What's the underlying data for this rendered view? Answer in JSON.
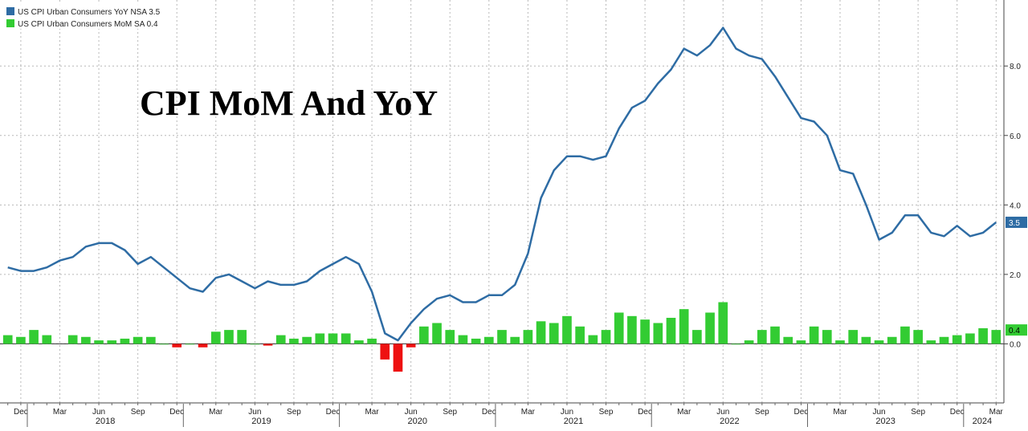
{
  "chart_data": {
    "type": "bar+line",
    "title": "CPI MoM And YoY",
    "legend": [
      {
        "label": "US CPI Urban Consumers YoY NSA",
        "value": "3.5",
        "color": "#2e6ca4"
      },
      {
        "label": "US CPI Urban Consumers MoM SA",
        "value": "0.4",
        "color": "#33cc33"
      }
    ],
    "legend_position": "top-left",
    "y_axis": {
      "position": "right",
      "range": [
        -1.7,
        9.9
      ],
      "ticks": [
        {
          "value": 0,
          "label": "0.0"
        },
        {
          "value": 2,
          "label": "2.0"
        },
        {
          "value": 4,
          "label": "4.0"
        },
        {
          "value": 6,
          "label": "6.0"
        },
        {
          "value": 8,
          "label": "8.0"
        }
      ]
    },
    "grid": true,
    "x_months": [
      "2017-11",
      "2017-12",
      "2018-01",
      "2018-02",
      "2018-03",
      "2018-04",
      "2018-05",
      "2018-06",
      "2018-07",
      "2018-08",
      "2018-09",
      "2018-10",
      "2018-11",
      "2018-12",
      "2019-01",
      "2019-02",
      "2019-03",
      "2019-04",
      "2019-05",
      "2019-06",
      "2019-07",
      "2019-08",
      "2019-09",
      "2019-10",
      "2019-11",
      "2019-12",
      "2020-01",
      "2020-02",
      "2020-03",
      "2020-04",
      "2020-05",
      "2020-06",
      "2020-07",
      "2020-08",
      "2020-09",
      "2020-10",
      "2020-11",
      "2020-12",
      "2021-01",
      "2021-02",
      "2021-03",
      "2021-04",
      "2021-05",
      "2021-06",
      "2021-07",
      "2021-08",
      "2021-09",
      "2021-10",
      "2021-11",
      "2021-12",
      "2022-01",
      "2022-02",
      "2022-03",
      "2022-04",
      "2022-05",
      "2022-06",
      "2022-07",
      "2022-08",
      "2022-09",
      "2022-10",
      "2022-11",
      "2022-12",
      "2023-01",
      "2023-02",
      "2023-03",
      "2023-04",
      "2023-05",
      "2023-06",
      "2023-07",
      "2023-08",
      "2023-09",
      "2023-10",
      "2023-11",
      "2023-12",
      "2024-01",
      "2024-02",
      "2024-03"
    ],
    "x_tick_labels": [
      {
        "month": "2017-12",
        "label": "Dec"
      },
      {
        "month": "2018-03",
        "label": "Mar"
      },
      {
        "month": "2018-06",
        "label": "Jun"
      },
      {
        "month": "2018-09",
        "label": "Sep"
      },
      {
        "month": "2018-12",
        "label": "Dec"
      },
      {
        "month": "2019-03",
        "label": "Mar"
      },
      {
        "month": "2019-06",
        "label": "Jun"
      },
      {
        "month": "2019-09",
        "label": "Sep"
      },
      {
        "month": "2019-12",
        "label": "Dec"
      },
      {
        "month": "2020-03",
        "label": "Mar"
      },
      {
        "month": "2020-06",
        "label": "Jun"
      },
      {
        "month": "2020-09",
        "label": "Sep"
      },
      {
        "month": "2020-12",
        "label": "Dec"
      },
      {
        "month": "2021-03",
        "label": "Mar"
      },
      {
        "month": "2021-06",
        "label": "Jun"
      },
      {
        "month": "2021-09",
        "label": "Sep"
      },
      {
        "month": "2021-12",
        "label": "Dec"
      },
      {
        "month": "2022-03",
        "label": "Mar"
      },
      {
        "month": "2022-06",
        "label": "Jun"
      },
      {
        "month": "2022-09",
        "label": "Sep"
      },
      {
        "month": "2022-12",
        "label": "Dec"
      },
      {
        "month": "2023-03",
        "label": "Mar"
      },
      {
        "month": "2023-06",
        "label": "Jun"
      },
      {
        "month": "2023-09",
        "label": "Sep"
      },
      {
        "month": "2023-12",
        "label": "Dec"
      },
      {
        "month": "2024-03",
        "label": "Mar"
      }
    ],
    "year_labels": [
      {
        "label": "2018",
        "from": "2018-01",
        "to": "2018-12"
      },
      {
        "label": "2019",
        "from": "2019-01",
        "to": "2019-12"
      },
      {
        "label": "2020",
        "from": "2020-01",
        "to": "2020-12"
      },
      {
        "label": "2021",
        "from": "2021-01",
        "to": "2021-12"
      },
      {
        "label": "2022",
        "from": "2022-01",
        "to": "2022-12"
      },
      {
        "label": "2023",
        "from": "2023-01",
        "to": "2023-12"
      },
      {
        "label": "2024",
        "from": "2024-01",
        "to": "2024-03"
      }
    ],
    "series": [
      {
        "name": "US CPI Urban Consumers YoY NSA",
        "kind": "line",
        "color": "#2e6ca4",
        "last_value_label": "3.5",
        "values": [
          2.2,
          2.1,
          2.1,
          2.2,
          2.4,
          2.5,
          2.8,
          2.9,
          2.9,
          2.7,
          2.3,
          2.5,
          2.2,
          1.9,
          1.6,
          1.5,
          1.9,
          2.0,
          1.8,
          1.6,
          1.8,
          1.7,
          1.7,
          1.8,
          2.1,
          2.3,
          2.5,
          2.3,
          1.5,
          0.3,
          0.1,
          0.6,
          1.0,
          1.3,
          1.4,
          1.2,
          1.2,
          1.4,
          1.4,
          1.7,
          2.6,
          4.2,
          5.0,
          5.4,
          5.4,
          5.3,
          5.4,
          6.2,
          6.8,
          7.0,
          7.5,
          7.9,
          8.5,
          8.3,
          8.6,
          9.1,
          8.5,
          8.3,
          8.2,
          7.7,
          7.1,
          6.5,
          6.4,
          6.0,
          5.0,
          4.9,
          4.0,
          3.0,
          3.2,
          3.7,
          3.7,
          3.2,
          3.1,
          3.4,
          3.1,
          3.2,
          3.5
        ]
      },
      {
        "name": "US CPI Urban Consumers MoM SA",
        "kind": "bar",
        "color": "#33cc33",
        "negative_color": "#ee1111",
        "last_value_label": "0.4",
        "values": [
          0.25,
          0.2,
          0.4,
          0.25,
          null,
          0.25,
          0.2,
          0.1,
          0.1,
          0.15,
          0.2,
          0.2,
          0.0,
          -0.1,
          0.0,
          -0.1,
          0.35,
          0.4,
          0.4,
          0.0,
          -0.05,
          0.25,
          0.15,
          0.2,
          0.3,
          0.3,
          0.3,
          0.1,
          0.15,
          -0.45,
          -0.8,
          -0.1,
          0.5,
          0.6,
          0.4,
          0.25,
          0.15,
          0.2,
          0.4,
          0.2,
          0.4,
          0.65,
          0.6,
          0.8,
          0.5,
          0.25,
          0.4,
          0.9,
          0.8,
          0.7,
          0.6,
          0.75,
          1.0,
          0.4,
          0.9,
          1.2,
          0.0,
          0.1,
          0.4,
          0.5,
          0.2,
          0.1,
          0.5,
          0.4,
          0.1,
          0.4,
          0.2,
          0.1,
          0.2,
          0.5,
          0.4,
          0.1,
          0.2,
          0.25,
          0.3,
          0.45,
          0.4
        ]
      }
    ]
  }
}
